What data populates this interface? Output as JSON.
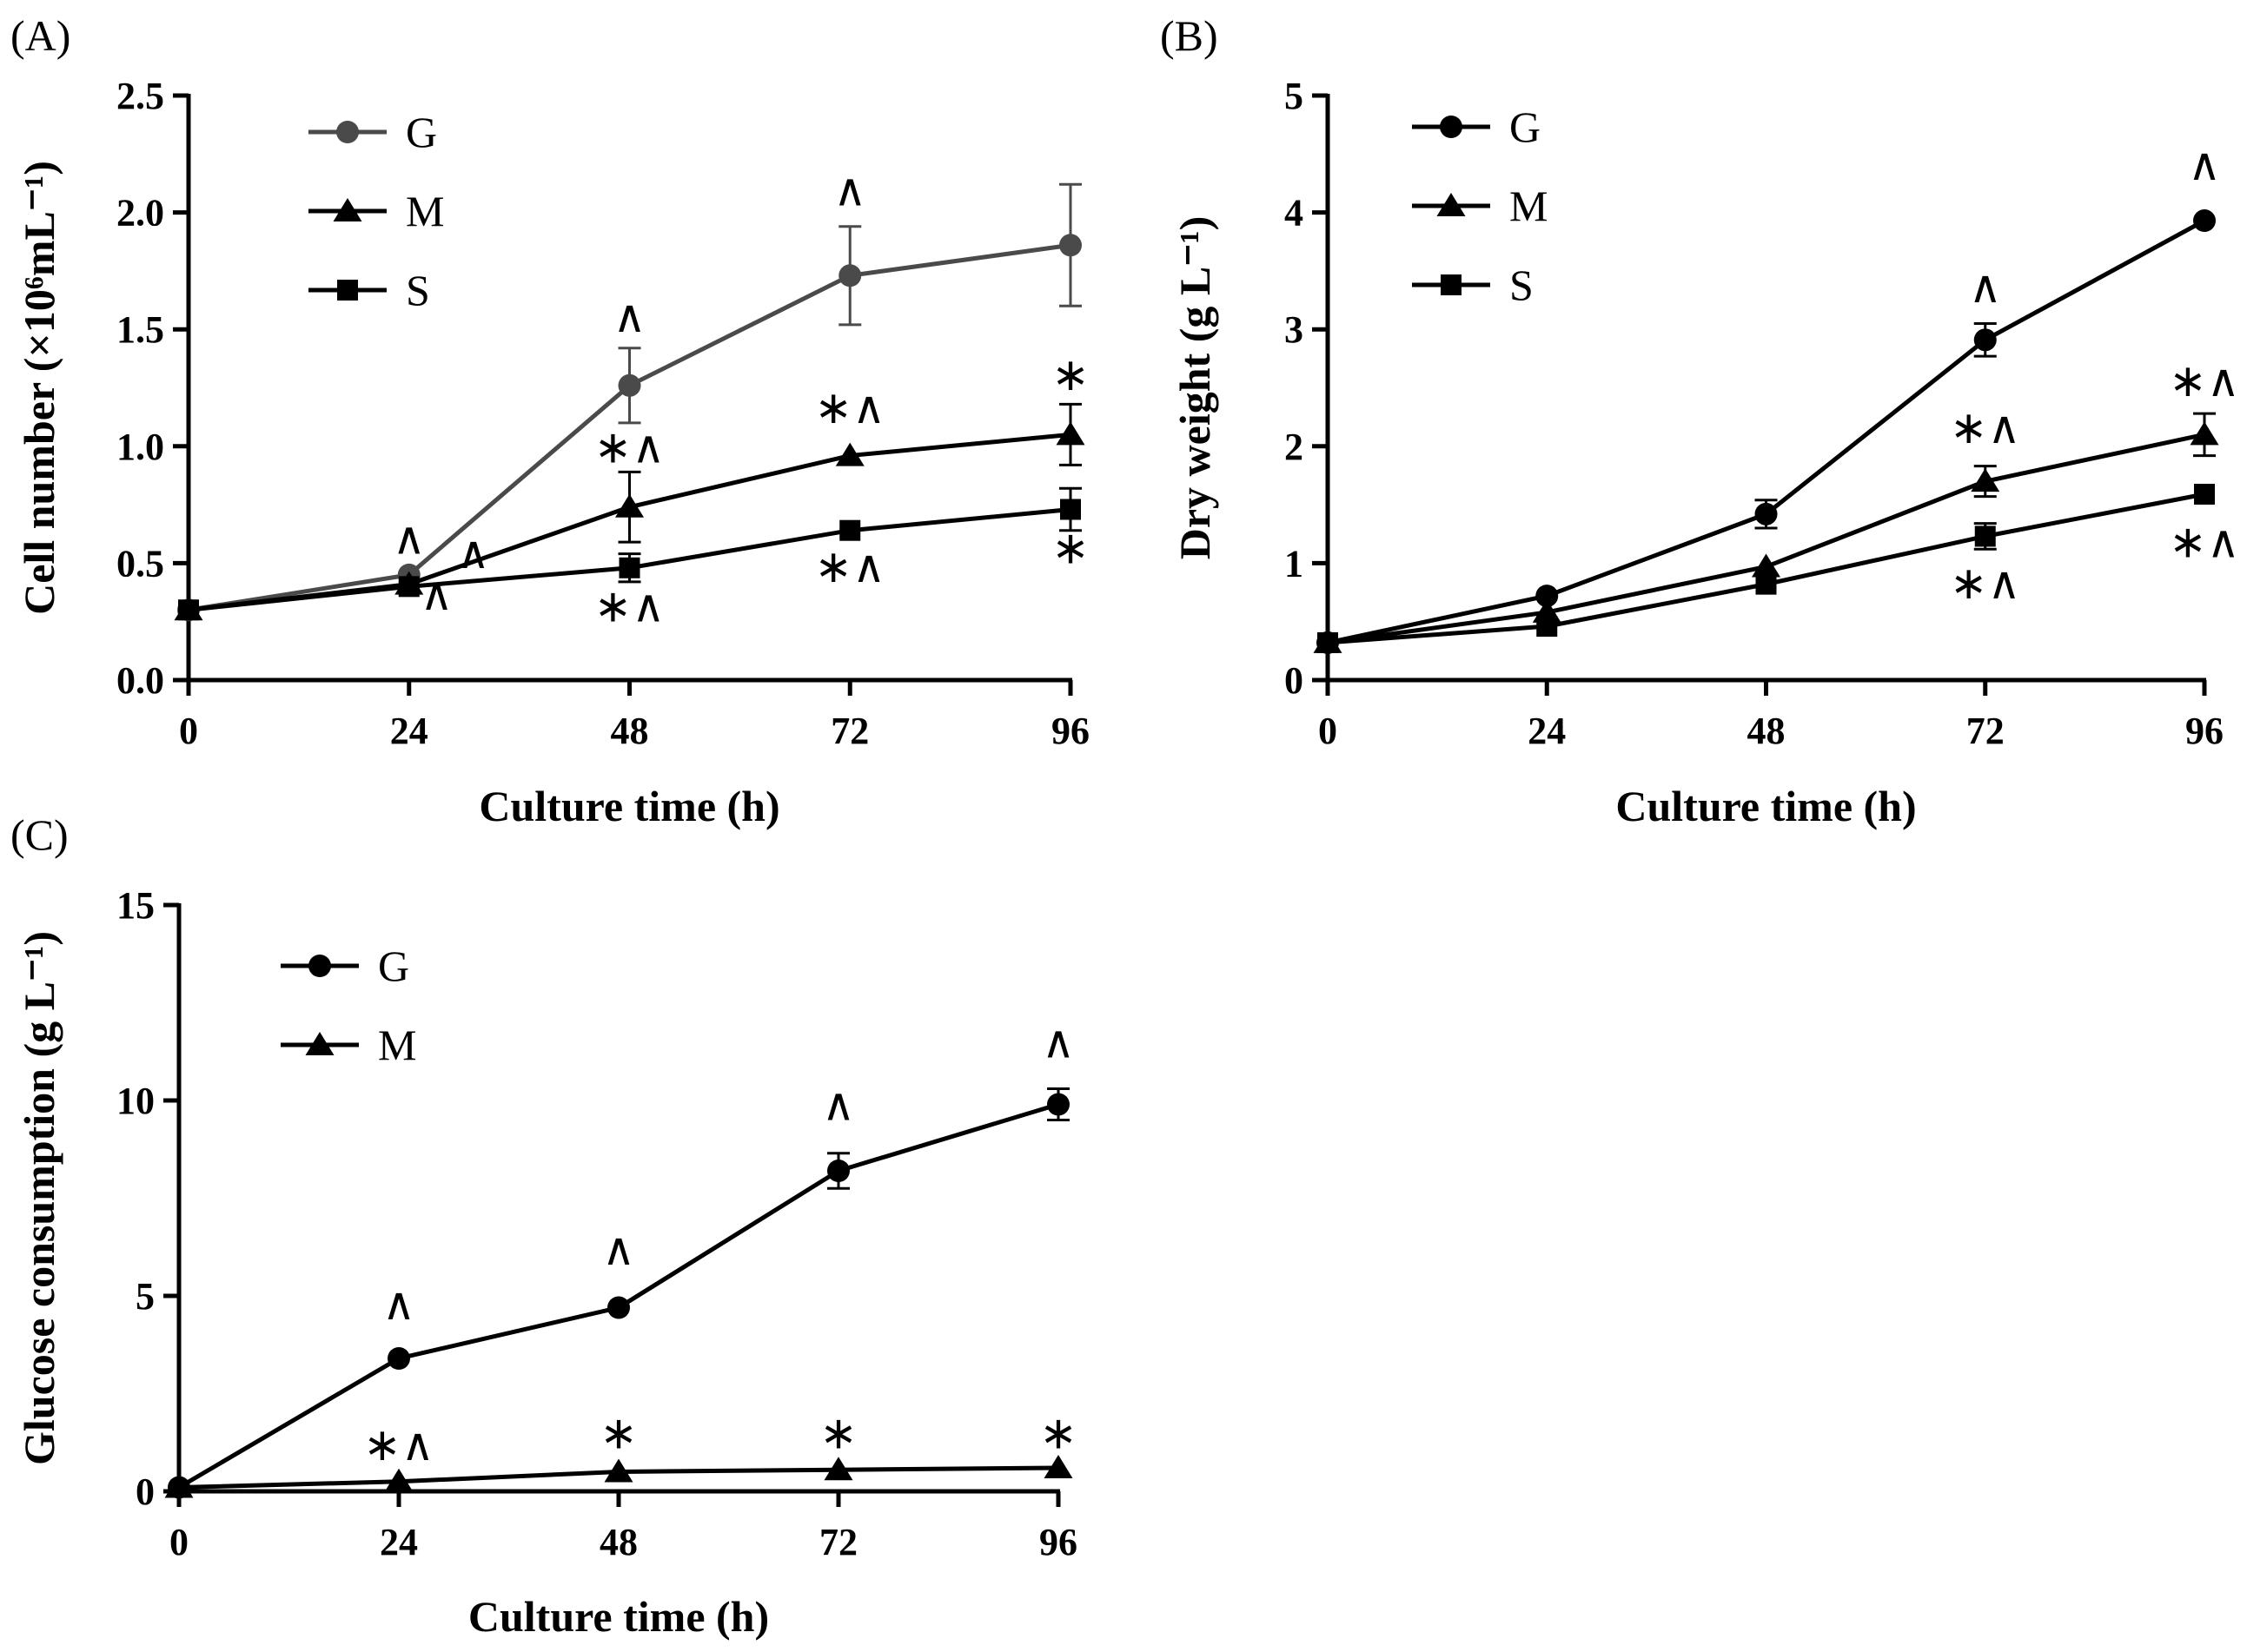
{
  "chart_data": [
    {
      "panel": "(A)",
      "type": "line",
      "xlabel": "Culture time (h)",
      "ylabel": "Cell number (×10⁶mL⁻¹)",
      "x": [
        0,
        24,
        48,
        72,
        96
      ],
      "xlim": [
        0,
        96
      ],
      "ylim": [
        0,
        2.5
      ],
      "yticks": [
        0.0,
        0.5,
        1.0,
        1.5,
        2.0,
        2.5
      ],
      "ytick_labels": [
        "0.0",
        "0.5",
        "1.0",
        "1.5",
        "2.0",
        "2.5"
      ],
      "xtick_labels": [
        "0",
        "24",
        "48",
        "72",
        "96"
      ],
      "legend_position": "top-left",
      "series": [
        {
          "name": "G",
          "marker": "circle",
          "color": "#4a4a4a",
          "values": [
            0.3,
            0.45,
            1.26,
            1.73,
            1.86
          ],
          "errors": [
            0.01,
            0.03,
            0.16,
            0.21,
            0.26
          ]
        },
        {
          "name": "M",
          "marker": "triangle",
          "color": "#000000",
          "values": [
            0.3,
            0.41,
            0.74,
            0.96,
            1.05
          ],
          "errors": [
            0.01,
            0.02,
            0.15,
            0.02,
            0.13
          ]
        },
        {
          "name": "S",
          "marker": "square",
          "color": "#000000",
          "values": [
            0.3,
            0.4,
            0.48,
            0.64,
            0.73
          ],
          "errors": [
            0.01,
            0.02,
            0.06,
            0.02,
            0.09
          ]
        }
      ],
      "annotations": [
        {
          "text": "^",
          "x": 24,
          "y": 0.54
        },
        {
          "text": "^",
          "x": 31,
          "y": 0.48
        },
        {
          "text": "^",
          "x": 27,
          "y": 0.3
        },
        {
          "text": "^",
          "x": 48,
          "y": 1.49
        },
        {
          "text": "*^",
          "x": 48,
          "y": 0.93
        },
        {
          "text": "*^",
          "x": 48,
          "y": 0.25
        },
        {
          "text": "^",
          "x": 72,
          "y": 2.03
        },
        {
          "text": "*^",
          "x": 72,
          "y": 1.1
        },
        {
          "text": "*^",
          "x": 72,
          "y": 0.42
        },
        {
          "text": "*",
          "x": 96,
          "y": 1.24
        },
        {
          "text": "*",
          "x": 96,
          "y": 0.5
        }
      ]
    },
    {
      "panel": "(B)",
      "type": "line",
      "xlabel": "Culture time (h)",
      "ylabel": "Dry weight (g L⁻¹)",
      "x": [
        0,
        24,
        48,
        72,
        96
      ],
      "xlim": [
        0,
        96
      ],
      "ylim": [
        0,
        5
      ],
      "yticks": [
        0,
        1,
        2,
        3,
        4,
        5
      ],
      "ytick_labels": [
        "0",
        "1",
        "2",
        "3",
        "4",
        "5"
      ],
      "xtick_labels": [
        "0",
        "24",
        "48",
        "72",
        "96"
      ],
      "legend_position": "top-left",
      "series": [
        {
          "name": "G",
          "marker": "circle",
          "color": "#000000",
          "values": [
            0.32,
            0.72,
            1.42,
            2.91,
            3.93
          ],
          "errors": [
            0.03,
            0.04,
            0.12,
            0.14,
            0.07
          ]
        },
        {
          "name": "M",
          "marker": "triangle",
          "color": "#000000",
          "values": [
            0.32,
            0.58,
            0.97,
            1.7,
            2.1
          ],
          "errors": [
            0.03,
            0.03,
            0.05,
            0.13,
            0.18
          ]
        },
        {
          "name": "S",
          "marker": "square",
          "color": "#000000",
          "values": [
            0.32,
            0.46,
            0.82,
            1.23,
            1.59
          ],
          "errors": [
            0.03,
            0.03,
            0.04,
            0.11,
            0.05
          ]
        }
      ],
      "annotations": [
        {
          "text": "^",
          "x": 96,
          "y": 4.28
        },
        {
          "text": "^",
          "x": 72,
          "y": 3.23
        },
        {
          "text": "*^",
          "x": 96,
          "y": 2.43
        },
        {
          "text": "*^",
          "x": 72,
          "y": 2.03
        },
        {
          "text": "*^",
          "x": 72,
          "y": 0.7
        },
        {
          "text": "*^",
          "x": 96,
          "y": 1.05
        }
      ]
    },
    {
      "panel": "(C)",
      "type": "line",
      "xlabel": "Culture time (h)",
      "ylabel": "Glucose consumption (g L⁻¹)",
      "x": [
        0,
        24,
        48,
        72,
        96
      ],
      "xlim": [
        0,
        96
      ],
      "ylim": [
        0,
        15
      ],
      "yticks": [
        0,
        5,
        10,
        15
      ],
      "ytick_labels": [
        "0",
        "5",
        "10",
        "15"
      ],
      "xtick_labels": [
        "0",
        "24",
        "48",
        "72",
        "96"
      ],
      "legend_position": "top-left",
      "series": [
        {
          "name": "G",
          "marker": "circle",
          "color": "#000000",
          "values": [
            0.1,
            3.4,
            4.7,
            8.2,
            9.9
          ],
          "errors": [
            0.05,
            0.1,
            0.1,
            0.45,
            0.4
          ]
        },
        {
          "name": "M",
          "marker": "triangle",
          "color": "#000000",
          "values": [
            0.1,
            0.25,
            0.5,
            0.55,
            0.6
          ],
          "errors": [
            0.05,
            0.05,
            0.05,
            0.05,
            0.05
          ]
        }
      ],
      "annotations": [
        {
          "text": "^",
          "x": 24,
          "y": 4.4
        },
        {
          "text": "^",
          "x": 48,
          "y": 5.8
        },
        {
          "text": "^",
          "x": 72,
          "y": 9.5
        },
        {
          "text": "^",
          "x": 96,
          "y": 11.1
        },
        {
          "text": "*^",
          "x": 24,
          "y": 0.8
        },
        {
          "text": "*",
          "x": 48,
          "y": 1.1
        },
        {
          "text": "*",
          "x": 72,
          "y": 1.1
        },
        {
          "text": "*",
          "x": 96,
          "y": 1.1
        }
      ]
    }
  ]
}
